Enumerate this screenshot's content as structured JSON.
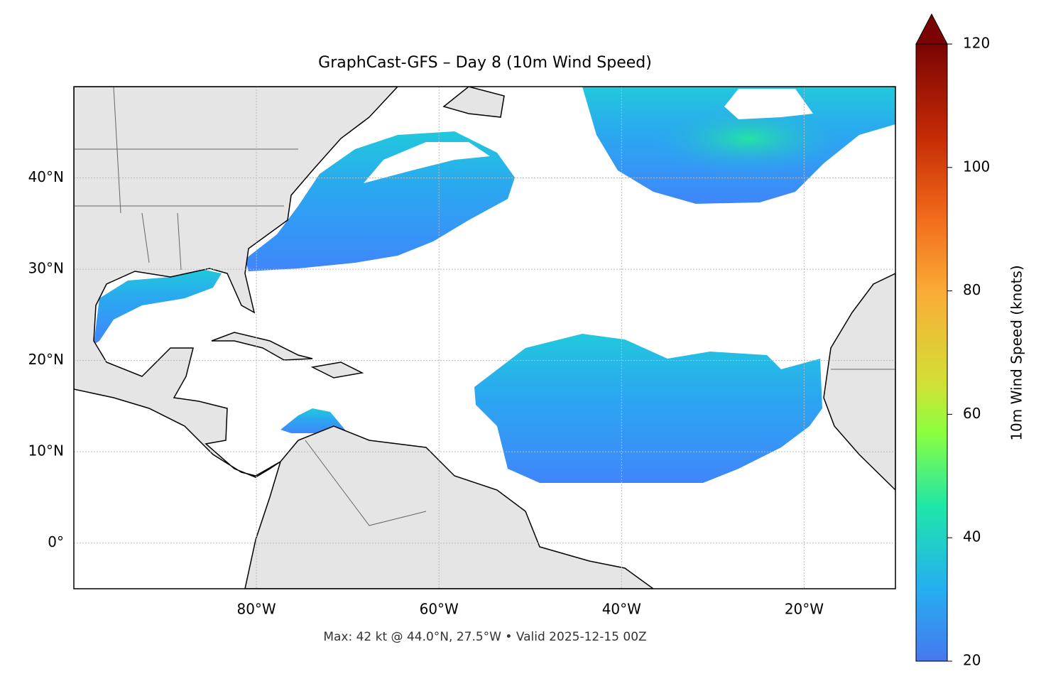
{
  "chart_data": {
    "type": "map",
    "title": "GraphCast-GFS – Day 8 (10m Wind Speed)",
    "subtitle": "Max: 42 kt @ 44.0°N, 27.5°W • Valid 2025-12-15 00Z",
    "xlim": [
      -100,
      -10
    ],
    "ylim": [
      -5,
      50
    ],
    "xticks": [
      {
        "value": -80,
        "label": "80°W"
      },
      {
        "value": -60,
        "label": "60°W"
      },
      {
        "value": -40,
        "label": "40°W"
      },
      {
        "value": -20,
        "label": "20°W"
      }
    ],
    "yticks": [
      {
        "value": 0,
        "label": "0°"
      },
      {
        "value": 10,
        "label": "10°N"
      },
      {
        "value": 20,
        "label": "20°N"
      },
      {
        "value": 30,
        "label": "30°N"
      },
      {
        "value": 40,
        "label": "40°N"
      }
    ],
    "grid": true,
    "colorbar": {
      "label": "10m Wind Speed (knots)",
      "lim": [
        20,
        120
      ],
      "ticks": [
        20,
        40,
        60,
        80,
        100,
        120
      ]
    }
  }
}
